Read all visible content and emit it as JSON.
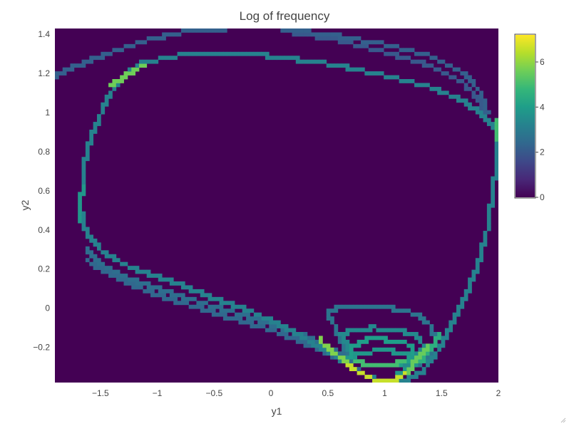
{
  "chart_data": {
    "type": "heatmap",
    "title": "Log of frequency",
    "xlabel": "y1",
    "ylabel": "y2",
    "xlim": [
      -1.9,
      2.0
    ],
    "ylim": [
      -0.38,
      1.43
    ],
    "x_ticks": [
      -1.5,
      -1,
      -0.5,
      0,
      0.5,
      1,
      1.5,
      2
    ],
    "x_tick_labels": [
      "−1.5",
      "−1",
      "−0.5",
      "0",
      "0.5",
      "1",
      "1.5",
      "2"
    ],
    "y_ticks": [
      -0.2,
      0,
      0.2,
      0.4,
      0.6,
      0.8,
      1,
      1.2,
      1.4
    ],
    "y_tick_labels": [
      "−0.2",
      "0",
      "0.2",
      "0.4",
      "0.6",
      "0.8",
      "1",
      "1.2",
      "1.4"
    ],
    "colorscale": "Viridis",
    "colorbar": {
      "min": 0,
      "max": 7.2,
      "ticks": [
        0,
        2,
        4,
        6
      ],
      "tick_labels": [
        "0",
        "2",
        "4",
        "6"
      ]
    },
    "background_value": 0,
    "curves": [
      {
        "v": 3.2,
        "points": [
          [
            1.99,
            0.85
          ],
          [
            1.96,
            0.62
          ],
          [
            1.9,
            0.4
          ],
          [
            1.82,
            0.22
          ],
          [
            1.7,
            0.05
          ],
          [
            1.55,
            -0.13
          ],
          [
            1.45,
            -0.24
          ],
          [
            1.32,
            -0.33
          ],
          [
            1.18,
            -0.37
          ],
          [
            1.02,
            -0.38
          ],
          [
            0.85,
            -0.35
          ],
          [
            0.7,
            -0.3
          ],
          [
            0.55,
            -0.24
          ],
          [
            0.35,
            -0.17
          ],
          [
            0.1,
            -0.09
          ],
          [
            -0.2,
            -0.01
          ],
          [
            -0.5,
            0.05
          ],
          [
            -0.8,
            0.12
          ],
          [
            -1.1,
            0.18
          ],
          [
            -1.35,
            0.24
          ],
          [
            -1.5,
            0.3
          ],
          [
            -1.62,
            0.38
          ],
          [
            -1.67,
            0.5
          ],
          [
            -1.66,
            0.65
          ],
          [
            -1.62,
            0.8
          ],
          [
            -1.55,
            0.92
          ],
          [
            -1.45,
            1.06
          ],
          [
            -1.33,
            1.17
          ],
          [
            -1.15,
            1.25
          ],
          [
            -0.85,
            1.29
          ],
          [
            -0.5,
            1.3
          ],
          [
            0.0,
            1.29
          ],
          [
            0.5,
            1.25
          ],
          [
            1.0,
            1.19
          ],
          [
            1.4,
            1.13
          ],
          [
            1.7,
            1.06
          ],
          [
            1.88,
            0.98
          ],
          [
            1.97,
            0.92
          ],
          [
            1.99,
            0.85
          ]
        ]
      },
      {
        "v": 2.6,
        "points": [
          [
            -1.62,
            0.3
          ],
          [
            -1.5,
            0.23
          ],
          [
            -1.2,
            0.14
          ],
          [
            -0.9,
            0.08
          ],
          [
            -0.5,
            0.01
          ],
          [
            -0.1,
            -0.06
          ],
          [
            0.3,
            -0.14
          ],
          [
            0.55,
            -0.21
          ],
          [
            0.75,
            -0.28
          ]
        ]
      },
      {
        "v": 2.4,
        "points": [
          [
            -1.6,
            0.24
          ],
          [
            -1.4,
            0.17
          ],
          [
            -1.1,
            0.09
          ],
          [
            -0.8,
            0.03
          ],
          [
            -0.4,
            -0.04
          ],
          [
            0.0,
            -0.11
          ],
          [
            0.35,
            -0.19
          ],
          [
            0.6,
            -0.26
          ],
          [
            0.78,
            -0.32
          ]
        ]
      },
      {
        "v": 2.2,
        "points": [
          [
            -1.9,
            1.19
          ],
          [
            -1.7,
            1.24
          ],
          [
            -1.4,
            1.31
          ],
          [
            -1.1,
            1.37
          ],
          [
            -0.8,
            1.41
          ],
          [
            -0.4,
            1.43
          ],
          [
            0.1,
            1.43
          ],
          [
            0.6,
            1.39
          ],
          [
            1.0,
            1.35
          ],
          [
            1.4,
            1.29
          ],
          [
            1.7,
            1.2
          ],
          [
            1.85,
            1.1
          ],
          [
            1.9,
            1.0
          ]
        ]
      },
      {
        "v": 2.0,
        "points": [
          [
            0.1,
            1.42
          ],
          [
            0.6,
            1.37
          ],
          [
            1.0,
            1.31
          ],
          [
            1.4,
            1.24
          ],
          [
            1.7,
            1.15
          ],
          [
            1.85,
            1.05
          ],
          [
            1.9,
            0.97
          ]
        ]
      },
      {
        "v": 2.8,
        "points": [
          [
            0.7,
            -0.26
          ],
          [
            0.62,
            -0.18
          ],
          [
            0.55,
            -0.08
          ],
          [
            0.5,
            -0.02
          ],
          [
            0.58,
            0.0
          ],
          [
            0.8,
            0.01
          ],
          [
            1.05,
            0.0
          ],
          [
            1.3,
            -0.03
          ],
          [
            1.42,
            -0.1
          ],
          [
            1.44,
            -0.18
          ],
          [
            1.38,
            -0.24
          ],
          [
            1.3,
            -0.3
          ]
        ]
      },
      {
        "v": 3.4,
        "points": [
          [
            0.72,
            -0.24
          ],
          [
            0.62,
            -0.14
          ],
          [
            0.7,
            -0.11
          ],
          [
            0.9,
            -0.1
          ],
          [
            1.1,
            -0.11
          ],
          [
            1.28,
            -0.14
          ],
          [
            1.34,
            -0.19
          ],
          [
            1.28,
            -0.25
          ],
          [
            1.18,
            -0.3
          ]
        ]
      },
      {
        "v": 4.0,
        "points": [
          [
            0.7,
            -0.26
          ],
          [
            0.72,
            -0.2
          ],
          [
            0.85,
            -0.16
          ],
          [
            1.0,
            -0.16
          ],
          [
            1.15,
            -0.17
          ],
          [
            1.25,
            -0.2
          ],
          [
            1.22,
            -0.25
          ],
          [
            1.12,
            -0.3
          ]
        ]
      },
      {
        "v": 3.8,
        "points": [
          [
            0.6,
            -0.26
          ],
          [
            0.74,
            -0.24
          ],
          [
            0.9,
            -0.22
          ],
          [
            1.05,
            -0.22
          ],
          [
            1.2,
            -0.23
          ],
          [
            1.28,
            -0.27
          ],
          [
            1.25,
            -0.31
          ],
          [
            1.1,
            -0.33
          ]
        ]
      },
      {
        "v": 5.5,
        "points": [
          [
            0.55,
            -0.22
          ],
          [
            0.65,
            -0.27
          ],
          [
            0.75,
            -0.32
          ],
          [
            0.88,
            -0.36
          ],
          [
            1.0,
            -0.38
          ],
          [
            1.12,
            -0.36
          ],
          [
            1.22,
            -0.31
          ],
          [
            1.3,
            -0.25
          ],
          [
            1.38,
            -0.2
          ]
        ]
      },
      {
        "v": 6.6,
        "points": [
          [
            0.68,
            -0.29
          ],
          [
            0.78,
            -0.33
          ],
          [
            0.88,
            -0.36
          ],
          [
            1.0,
            -0.38
          ],
          [
            1.1,
            -0.37
          ],
          [
            1.18,
            -0.33
          ]
        ]
      },
      {
        "v": 5.0,
        "points": [
          [
            0.75,
            -0.27
          ],
          [
            0.85,
            -0.29
          ],
          [
            0.97,
            -0.3
          ],
          [
            1.08,
            -0.29
          ],
          [
            1.16,
            -0.27
          ]
        ]
      },
      {
        "v": 5.6,
        "points": [
          [
            -1.4,
            1.14
          ],
          [
            -1.25,
            1.2
          ],
          [
            -1.1,
            1.25
          ]
        ]
      },
      {
        "v": 5.0,
        "points": [
          [
            1.97,
            0.96
          ],
          [
            1.99,
            0.9
          ],
          [
            1.99,
            0.86
          ]
        ]
      },
      {
        "v": 3.8,
        "points": [
          [
            -1.67,
            0.45
          ],
          [
            -1.67,
            0.55
          ],
          [
            -1.66,
            0.62
          ]
        ]
      },
      {
        "v": 5.8,
        "points": [
          [
            0.42,
            -0.16
          ],
          [
            0.52,
            -0.21
          ],
          [
            0.6,
            -0.25
          ],
          [
            0.7,
            -0.29
          ]
        ]
      },
      {
        "v": 4.5,
        "points": [
          [
            1.32,
            -0.27
          ],
          [
            1.4,
            -0.21
          ],
          [
            1.48,
            -0.14
          ]
        ]
      }
    ]
  }
}
